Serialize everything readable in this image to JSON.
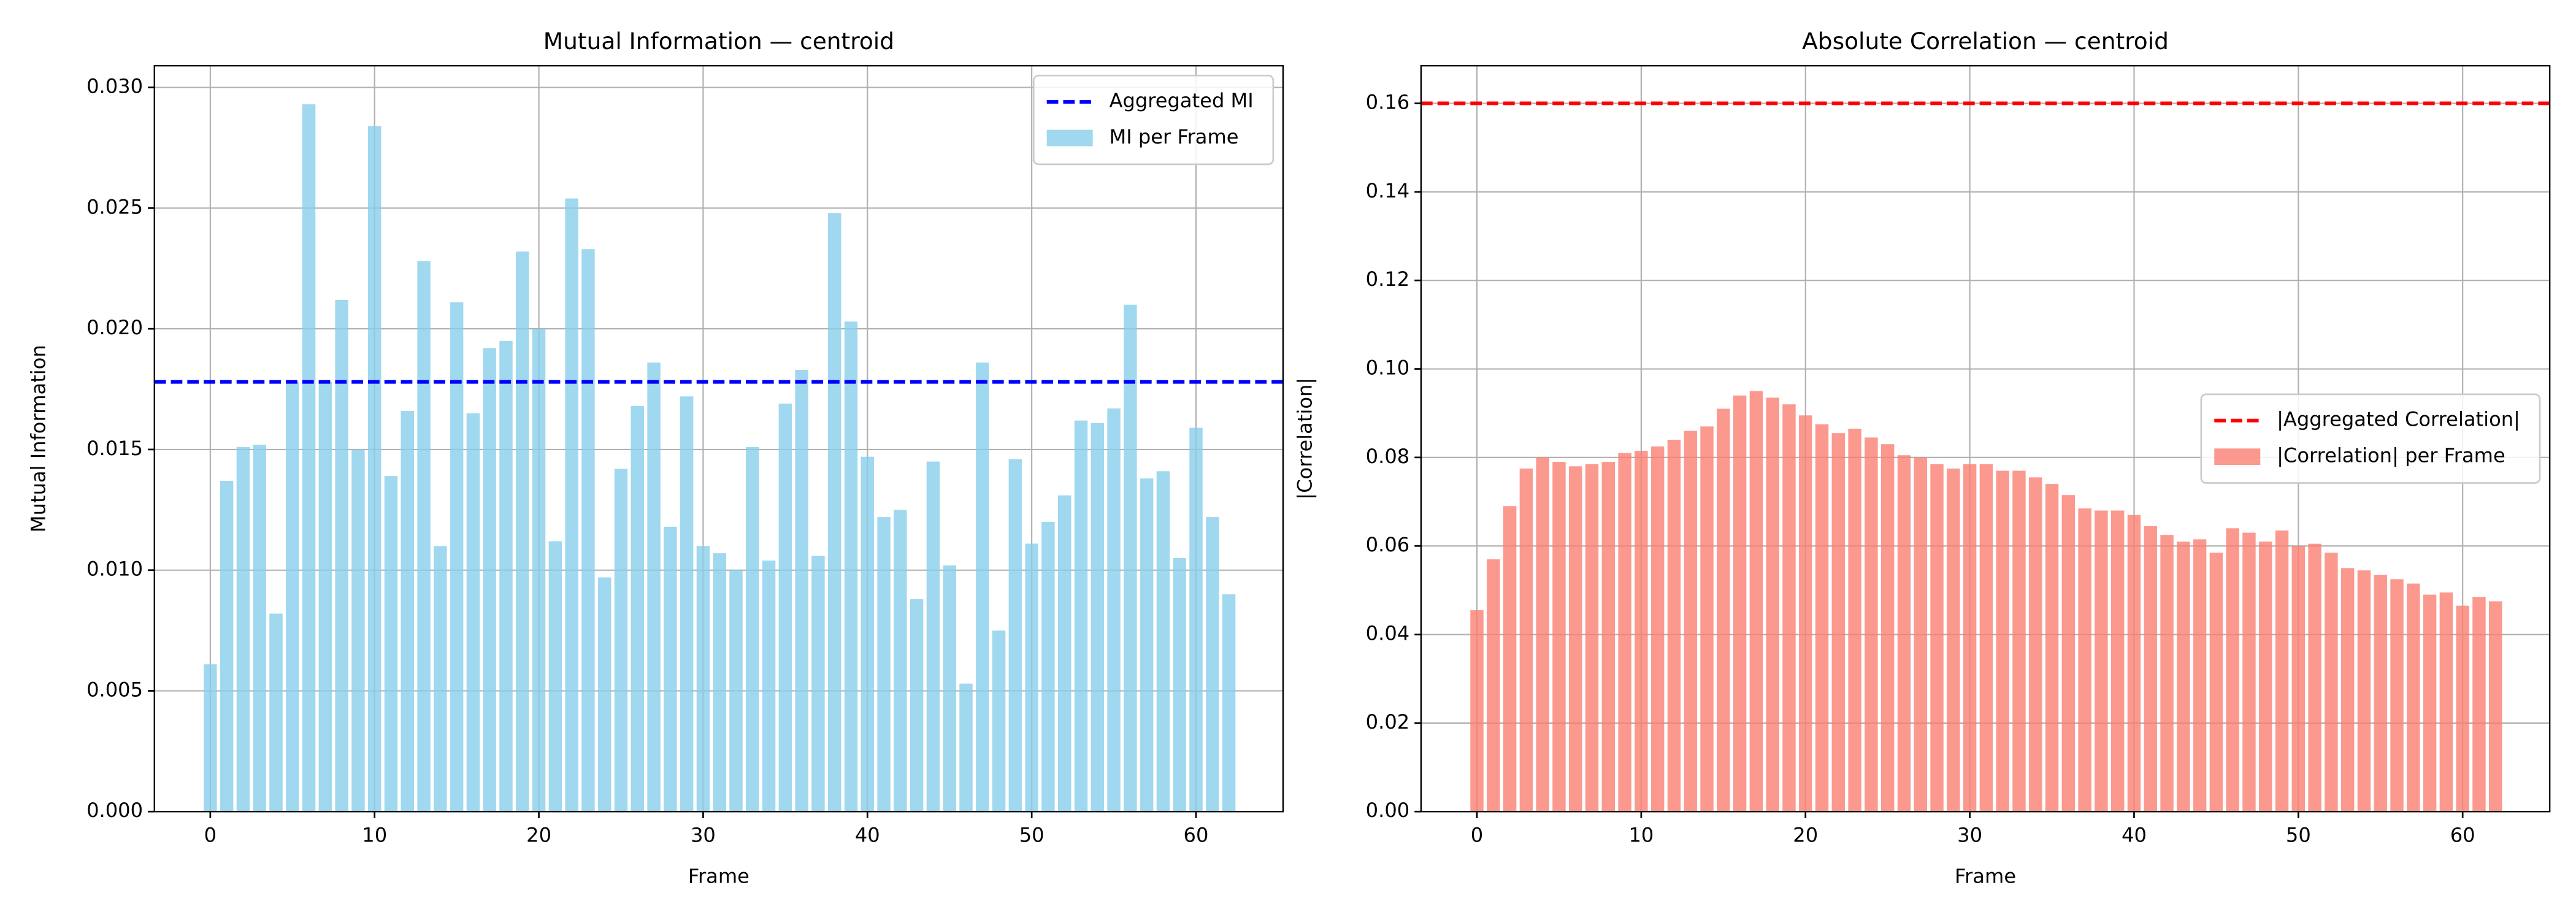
{
  "chart_data": [
    {
      "type": "bar",
      "title": "Mutual Information — centroid",
      "x_label": "Frame",
      "y_label": "Mutual Information",
      "x": [
        0,
        1,
        2,
        3,
        4,
        5,
        6,
        7,
        8,
        9,
        10,
        11,
        12,
        13,
        14,
        15,
        16,
        17,
        18,
        19,
        20,
        21,
        22,
        23,
        24,
        25,
        26,
        27,
        28,
        29,
        30,
        31,
        32,
        33,
        34,
        35,
        36,
        37,
        38,
        39,
        40,
        41,
        42,
        43,
        44,
        45,
        46,
        47,
        48,
        49,
        50,
        51,
        52,
        53,
        54,
        55,
        56,
        57,
        58,
        59,
        60,
        61,
        62
      ],
      "series": [
        {
          "name": "MI per Frame",
          "color": "#87ceeb",
          "values": [
            0.0061,
            0.0137,
            0.0151,
            0.0152,
            0.0082,
            0.0178,
            0.0293,
            0.0178,
            0.0212,
            0.015,
            0.0284,
            0.0139,
            0.0166,
            0.0228,
            0.011,
            0.0211,
            0.0165,
            0.0192,
            0.0195,
            0.0232,
            0.02,
            0.0112,
            0.0254,
            0.0233,
            0.0097,
            0.0142,
            0.0168,
            0.0186,
            0.0118,
            0.0172,
            0.011,
            0.0107,
            0.01,
            0.0151,
            0.0104,
            0.0169,
            0.0183,
            0.0106,
            0.0248,
            0.0203,
            0.0147,
            0.0122,
            0.0125,
            0.0088,
            0.0145,
            0.0102,
            0.0053,
            0.0186,
            0.0075,
            0.0146,
            0.0111,
            0.012,
            0.0131,
            0.0162,
            0.0161,
            0.0167,
            0.021,
            0.0138,
            0.0141,
            0.0105,
            0.0159,
            0.0122,
            0.009
          ]
        }
      ],
      "aggregated": {
        "name": "Aggregated MI",
        "value": 0.0178,
        "color": "#0000ff"
      },
      "xlim": [
        -3.4,
        65.3
      ],
      "xticks": [
        0,
        10,
        20,
        30,
        40,
        50,
        60
      ],
      "ylim": [
        0,
        0.0309
      ],
      "yticks": [
        {
          "value": 0,
          "label": "0.000"
        },
        {
          "value": 0.005,
          "label": "0.005"
        },
        {
          "value": 0.01,
          "label": "0.010"
        },
        {
          "value": 0.015,
          "label": "0.015"
        },
        {
          "value": 0.02,
          "label": "0.020"
        },
        {
          "value": 0.025,
          "label": "0.025"
        },
        {
          "value": 0.03,
          "label": "0.030"
        }
      ],
      "grid": true,
      "legend": "upper-right"
    },
    {
      "type": "bar",
      "title": "Absolute Correlation — centroid",
      "x_label": "Frame",
      "y_label": "|Correlation|",
      "x": [
        0,
        1,
        2,
        3,
        4,
        5,
        6,
        7,
        8,
        9,
        10,
        11,
        12,
        13,
        14,
        15,
        16,
        17,
        18,
        19,
        20,
        21,
        22,
        23,
        24,
        25,
        26,
        27,
        28,
        29,
        30,
        31,
        32,
        33,
        34,
        35,
        36,
        37,
        38,
        39,
        40,
        41,
        42,
        43,
        44,
        45,
        46,
        47,
        48,
        49,
        50,
        51,
        52,
        53,
        54,
        55,
        56,
        57,
        58,
        59,
        60,
        61,
        62
      ],
      "series": [
        {
          "name": "|Correlation| per Frame",
          "color": "#fa8072",
          "values": [
            0.0455,
            0.057,
            0.069,
            0.0775,
            0.08,
            0.079,
            0.078,
            0.0785,
            0.079,
            0.081,
            0.0815,
            0.0825,
            0.084,
            0.086,
            0.087,
            0.091,
            0.094,
            0.095,
            0.0935,
            0.092,
            0.0895,
            0.0875,
            0.0855,
            0.0865,
            0.0845,
            0.083,
            0.0805,
            0.08,
            0.0785,
            0.0775,
            0.0785,
            0.0785,
            0.077,
            0.077,
            0.0755,
            0.074,
            0.0715,
            0.0685,
            0.068,
            0.068,
            0.067,
            0.0645,
            0.0625,
            0.061,
            0.0615,
            0.0585,
            0.064,
            0.063,
            0.061,
            0.0635,
            0.06,
            0.0605,
            0.0585,
            0.055,
            0.0545,
            0.0535,
            0.0525,
            0.0515,
            0.049,
            0.0495,
            0.0465,
            0.0485,
            0.0475
          ]
        }
      ],
      "aggregated": {
        "name": "|Aggregated Correlation|",
        "value": 0.16,
        "color": "#ff0000"
      },
      "xlim": [
        -3.4,
        65.3
      ],
      "xticks": [
        0,
        10,
        20,
        30,
        40,
        50,
        60
      ],
      "ylim": [
        0,
        0.1685
      ],
      "yticks": [
        {
          "value": 0,
          "label": "0.00"
        },
        {
          "value": 0.02,
          "label": "0.02"
        },
        {
          "value": 0.04,
          "label": "0.04"
        },
        {
          "value": 0.06,
          "label": "0.06"
        },
        {
          "value": 0.08,
          "label": "0.08"
        },
        {
          "value": 0.1,
          "label": "0.10"
        },
        {
          "value": 0.12,
          "label": "0.12"
        },
        {
          "value": 0.14,
          "label": "0.14"
        },
        {
          "value": 0.16,
          "label": "0.16"
        }
      ],
      "grid": true,
      "legend": "center-right"
    }
  ]
}
